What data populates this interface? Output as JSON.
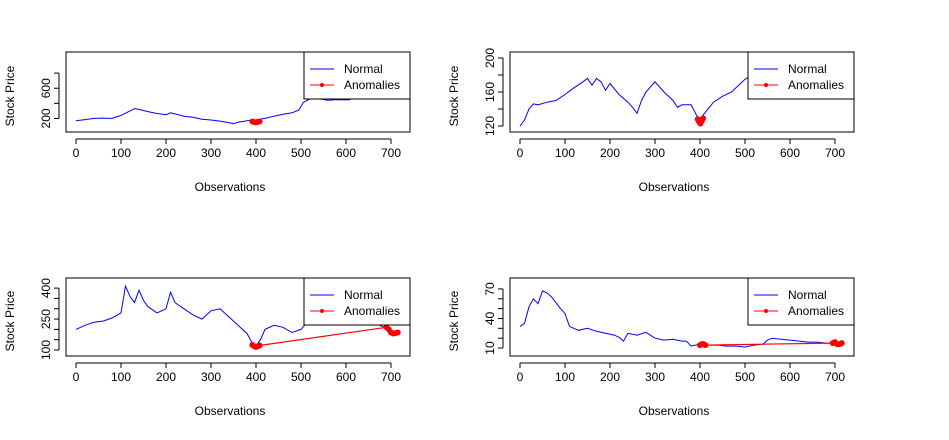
{
  "colors": {
    "normal": "#0000ff",
    "anomaly": "#ff0000",
    "axis": "#000000",
    "background": "#ffffff"
  },
  "chart_data": [
    {
      "type": "line",
      "xlabel": "Observations",
      "ylabel": "Stock Price",
      "xlim": [
        0,
        720
      ],
      "ylim": [
        100,
        1000
      ],
      "xticks": [
        0,
        100,
        200,
        300,
        400,
        500,
        600,
        700
      ],
      "yticks": [
        200,
        600
      ],
      "ymarks": [
        200,
        400,
        600,
        800
      ],
      "grid": false,
      "legend": {
        "position": "top-right",
        "entries": [
          "Normal",
          "Anomalies"
        ]
      },
      "series": [
        {
          "name": "Normal",
          "color": "#0000ff",
          "points": [
            [
              0,
              170
            ],
            [
              20,
              185
            ],
            [
              40,
              200
            ],
            [
              60,
              205
            ],
            [
              80,
              200
            ],
            [
              100,
              240
            ],
            [
              120,
              300
            ],
            [
              130,
              330
            ],
            [
              140,
              320
            ],
            [
              160,
              290
            ],
            [
              180,
              265
            ],
            [
              200,
              250
            ],
            [
              210,
              275
            ],
            [
              220,
              260
            ],
            [
              240,
              230
            ],
            [
              260,
              215
            ],
            [
              280,
              190
            ],
            [
              300,
              180
            ],
            [
              320,
              165
            ],
            [
              340,
              145
            ],
            [
              350,
              130
            ],
            [
              360,
              150
            ],
            [
              380,
              170
            ],
            [
              400,
              180
            ],
            [
              420,
              200
            ],
            [
              440,
              230
            ],
            [
              460,
              255
            ],
            [
              480,
              275
            ],
            [
              495,
              310
            ],
            [
              505,
              410
            ],
            [
              520,
              460
            ],
            [
              540,
              460
            ],
            [
              560,
              440
            ],
            [
              580,
              450
            ],
            [
              600,
              445
            ],
            [
              610,
              450
            ]
          ]
        },
        {
          "name": "Anomalies",
          "color": "#ff0000",
          "points": [
            [
              392,
              160
            ],
            [
              396,
              152
            ],
            [
              400,
              148
            ],
            [
              404,
              155
            ],
            [
              408,
              160
            ]
          ]
        }
      ]
    },
    {
      "type": "line",
      "xlabel": "Observations",
      "ylabel": "Stock Price",
      "xlim": [
        0,
        720
      ],
      "ylim": [
        120,
        200
      ],
      "xticks": [
        0,
        100,
        200,
        300,
        400,
        500,
        600,
        700
      ],
      "yticks": [
        120,
        160,
        200
      ],
      "ymarks": [
        120,
        140,
        160,
        180,
        200
      ],
      "grid": false,
      "legend": {
        "position": "top-right",
        "entries": [
          "Normal",
          "Anomalies"
        ]
      },
      "series": [
        {
          "name": "Normal",
          "color": "#0000ff",
          "points": [
            [
              0,
              120
            ],
            [
              10,
              127
            ],
            [
              20,
              140
            ],
            [
              30,
              146
            ],
            [
              40,
              145
            ],
            [
              60,
              148
            ],
            [
              80,
              150
            ],
            [
              100,
              157
            ],
            [
              120,
              165
            ],
            [
              140,
              172
            ],
            [
              150,
              176
            ],
            [
              160,
              168
            ],
            [
              170,
              176
            ],
            [
              180,
              172
            ],
            [
              190,
              162
            ],
            [
              200,
              170
            ],
            [
              220,
              157
            ],
            [
              240,
              148
            ],
            [
              250,
              142
            ],
            [
              260,
              135
            ],
            [
              270,
              150
            ],
            [
              280,
              160
            ],
            [
              300,
              172
            ],
            [
              320,
              160
            ],
            [
              340,
              150
            ],
            [
              350,
              142
            ],
            [
              360,
              145
            ],
            [
              380,
              145
            ],
            [
              390,
              135
            ],
            [
              395,
              130
            ],
            [
              400,
              128
            ],
            [
              410,
              135
            ],
            [
              430,
              148
            ],
            [
              450,
              155
            ],
            [
              470,
              160
            ],
            [
              490,
              170
            ],
            [
              500,
              175
            ],
            [
              510,
              178
            ]
          ]
        },
        {
          "name": "Anomalies",
          "color": "#ff0000",
          "points": [
            [
              395,
              128
            ],
            [
              398,
              125
            ],
            [
              401,
              123
            ],
            [
              404,
              126
            ],
            [
              407,
              129
            ]
          ]
        }
      ]
    },
    {
      "type": "line",
      "xlabel": "Observations",
      "ylabel": "Stock Price",
      "xlim": [
        0,
        720
      ],
      "ylim": [
        100,
        420
      ],
      "xticks": [
        0,
        100,
        200,
        300,
        400,
        500,
        600,
        700
      ],
      "yticks": [
        100,
        250,
        400
      ],
      "ymarks": [
        100,
        150,
        200,
        250,
        300,
        350,
        400
      ],
      "grid": false,
      "legend": {
        "position": "top-right",
        "entries": [
          "Normal",
          "Anomalies"
        ]
      },
      "series": [
        {
          "name": "Normal",
          "color": "#0000ff",
          "points": [
            [
              0,
              200
            ],
            [
              20,
              220
            ],
            [
              40,
              235
            ],
            [
              60,
              240
            ],
            [
              80,
              255
            ],
            [
              100,
              280
            ],
            [
              110,
              410
            ],
            [
              120,
              360
            ],
            [
              130,
              330
            ],
            [
              140,
              390
            ],
            [
              150,
              340
            ],
            [
              160,
              310
            ],
            [
              180,
              280
            ],
            [
              200,
              300
            ],
            [
              210,
              380
            ],
            [
              220,
              330
            ],
            [
              240,
              300
            ],
            [
              260,
              270
            ],
            [
              280,
              250
            ],
            [
              300,
              290
            ],
            [
              320,
              300
            ],
            [
              340,
              260
            ],
            [
              360,
              220
            ],
            [
              380,
              180
            ],
            [
              390,
              140
            ],
            [
              400,
              120
            ],
            [
              410,
              150
            ],
            [
              420,
              200
            ],
            [
              440,
              220
            ],
            [
              460,
              210
            ],
            [
              480,
              185
            ],
            [
              500,
              200
            ],
            [
              520,
              250
            ],
            [
              540,
              270
            ],
            [
              560,
              260
            ],
            [
              580,
              250
            ],
            [
              600,
              255
            ],
            [
              620,
              240
            ],
            [
              640,
              250
            ],
            [
              660,
              235
            ],
            [
              680,
              215
            ],
            [
              690,
              205
            ]
          ]
        },
        {
          "name": "Anomalies",
          "color": "#ff0000",
          "points": [
            [
              392,
              125
            ],
            [
              396,
              118
            ],
            [
              400,
              115
            ],
            [
              404,
              118
            ],
            [
              408,
              122
            ],
            [
              690,
              210
            ],
            [
              695,
              200
            ],
            [
              700,
              185
            ],
            [
              705,
              180
            ],
            [
              710,
              182
            ],
            [
              715,
              185
            ]
          ]
        }
      ]
    },
    {
      "type": "line",
      "xlabel": "Observations",
      "ylabel": "Stock Price",
      "xlim": [
        0,
        720
      ],
      "ylim": [
        8,
        75
      ],
      "xticks": [
        0,
        100,
        200,
        300,
        400,
        500,
        600,
        700
      ],
      "yticks": [
        10,
        40,
        70
      ],
      "ymarks": [
        10,
        20,
        30,
        40,
        50,
        60,
        70
      ],
      "grid": false,
      "legend": {
        "position": "top-right",
        "entries": [
          "Normal",
          "Anomalies"
        ]
      },
      "series": [
        {
          "name": "Normal",
          "color": "#0000ff",
          "points": [
            [
              0,
              32
            ],
            [
              10,
              35
            ],
            [
              20,
              52
            ],
            [
              30,
              60
            ],
            [
              40,
              55
            ],
            [
              50,
              68
            ],
            [
              60,
              66
            ],
            [
              70,
              62
            ],
            [
              80,
              56
            ],
            [
              90,
              50
            ],
            [
              100,
              45
            ],
            [
              110,
              32
            ],
            [
              130,
              28
            ],
            [
              150,
              30
            ],
            [
              170,
              27
            ],
            [
              190,
              25
            ],
            [
              210,
              23
            ],
            [
              220,
              21
            ],
            [
              230,
              17
            ],
            [
              240,
              25
            ],
            [
              260,
              23
            ],
            [
              280,
              26
            ],
            [
              300,
              20
            ],
            [
              320,
              18
            ],
            [
              340,
              19
            ],
            [
              360,
              17
            ],
            [
              370,
              17
            ],
            [
              380,
              12
            ],
            [
              400,
              14
            ],
            [
              420,
              13
            ],
            [
              440,
              13
            ],
            [
              460,
              12
            ],
            [
              480,
              12
            ],
            [
              500,
              11
            ],
            [
              520,
              13
            ],
            [
              540,
              14
            ],
            [
              550,
              18
            ],
            [
              560,
              20
            ],
            [
              580,
              19
            ],
            [
              600,
              18
            ],
            [
              620,
              17
            ],
            [
              640,
              16
            ],
            [
              660,
              16
            ],
            [
              680,
              15
            ],
            [
              695,
              15
            ]
          ]
        },
        {
          "name": "Anomalies",
          "color": "#ff0000",
          "points": [
            [
              400,
              13
            ],
            [
              404,
              14
            ],
            [
              408,
              14
            ],
            [
              412,
              13
            ],
            [
              695,
              15
            ],
            [
              700,
              16
            ],
            [
              705,
              14
            ],
            [
              710,
              14
            ],
            [
              715,
              15
            ]
          ]
        }
      ]
    }
  ]
}
